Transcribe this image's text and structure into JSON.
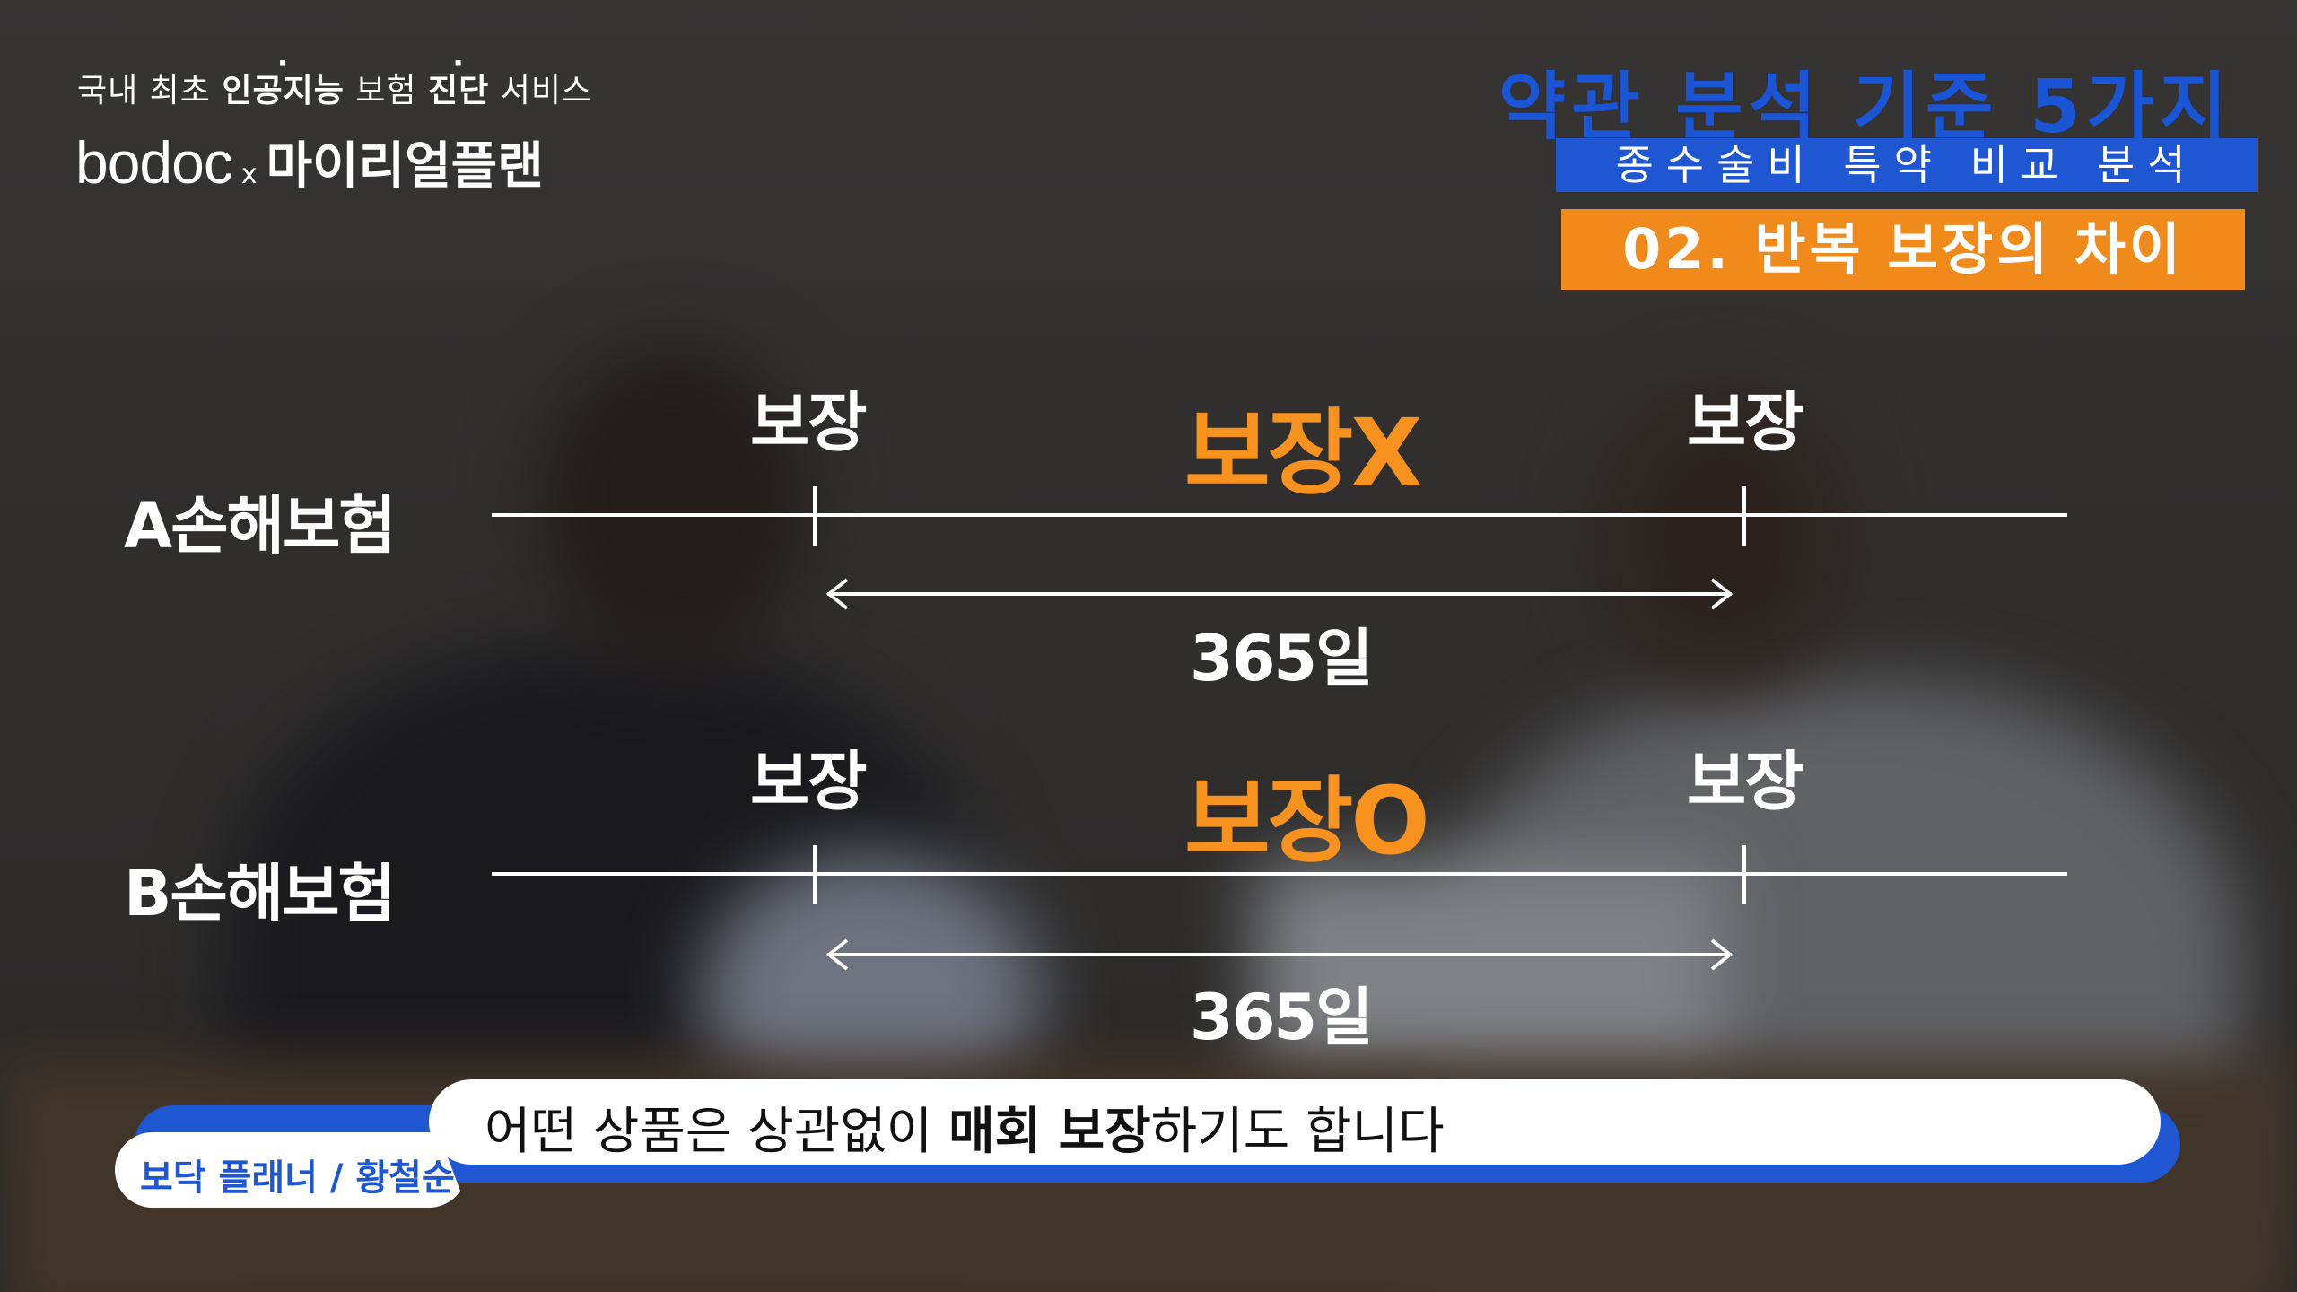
{
  "branding": {
    "tagline_parts": [
      "국내 최초 ",
      "인공지능",
      " 보험 ",
      "진단",
      " 서비스"
    ],
    "logo_bodoc": "bodoc",
    "logo_x": "x",
    "logo_partner": "마이리얼플랜"
  },
  "titles": {
    "main": "약관 분석 기준 5가지",
    "sub": "종수술비 특약 비교 분석",
    "step": "02. 반복 보장의 차이"
  },
  "diagram": {
    "row_a": {
      "label": "A손해보험",
      "left_tick": "보장",
      "right_tick": "보장",
      "center": "보장X",
      "interval": "365일"
    },
    "row_b": {
      "label": "B손해보험",
      "left_tick": "보장",
      "right_tick": "보장",
      "center": "보장O",
      "interval": "365일"
    },
    "colors": {
      "highlight": "#f7921e",
      "line": "#ffffff"
    }
  },
  "subtitle": {
    "text_before": "어떤 상품은 상관없이 ",
    "text_bold": "매회 보장",
    "text_after": "하기도 합니다",
    "speaker": "보닥 플래너 / 황철순",
    "bar_color": "#1f57d3"
  }
}
